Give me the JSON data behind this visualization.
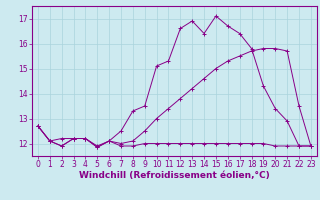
{
  "line1": {
    "x": [
      0,
      1,
      2,
      3,
      4,
      5,
      6,
      7,
      8,
      9,
      10,
      11,
      12,
      13,
      14,
      15,
      16,
      17,
      18,
      19,
      20,
      21,
      22,
      23
    ],
    "y": [
      12.7,
      12.1,
      11.9,
      12.2,
      12.2,
      11.85,
      12.1,
      12.5,
      13.3,
      13.5,
      15.1,
      15.3,
      16.6,
      16.9,
      16.4,
      17.1,
      16.7,
      16.4,
      15.8,
      14.3,
      13.4,
      12.9,
      11.9,
      11.9
    ]
  },
  "line2": {
    "x": [
      0,
      1,
      2,
      3,
      4,
      5,
      6,
      7,
      8,
      9,
      10,
      11,
      12,
      13,
      14,
      15,
      16,
      17,
      18,
      19,
      20,
      21,
      22,
      23
    ],
    "y": [
      12.7,
      12.1,
      12.2,
      12.2,
      12.2,
      11.9,
      12.1,
      12.0,
      12.1,
      12.5,
      13.0,
      13.4,
      13.8,
      14.2,
      14.6,
      15.0,
      15.3,
      15.5,
      15.7,
      15.8,
      15.8,
      15.7,
      13.5,
      11.9
    ]
  },
  "line3": {
    "x": [
      0,
      1,
      2,
      3,
      4,
      5,
      6,
      7,
      8,
      9,
      10,
      11,
      12,
      13,
      14,
      15,
      16,
      17,
      18,
      19,
      20,
      21,
      22,
      23
    ],
    "y": [
      12.7,
      12.1,
      11.9,
      12.2,
      12.2,
      11.85,
      12.1,
      11.9,
      11.9,
      12.0,
      12.0,
      12.0,
      12.0,
      12.0,
      12.0,
      12.0,
      12.0,
      12.0,
      12.0,
      12.0,
      11.9,
      11.9,
      11.9,
      11.9
    ]
  },
  "background_color": "#cdeaf0",
  "grid_color": "#aad4dd",
  "line_color": "#880088",
  "xlabel": "Windchill (Refroidissement éolien,°C)",
  "xlim_min": -0.5,
  "xlim_max": 23.5,
  "ylim_min": 11.5,
  "ylim_max": 17.5,
  "yticks": [
    12,
    13,
    14,
    15,
    16,
    17
  ],
  "xticks": [
    0,
    1,
    2,
    3,
    4,
    5,
    6,
    7,
    8,
    9,
    10,
    11,
    12,
    13,
    14,
    15,
    16,
    17,
    18,
    19,
    20,
    21,
    22,
    23
  ],
  "xlabel_fontsize": 6.5,
  "tick_fontsize": 5.5,
  "marker_size": 2.5,
  "linewidth": 0.7
}
